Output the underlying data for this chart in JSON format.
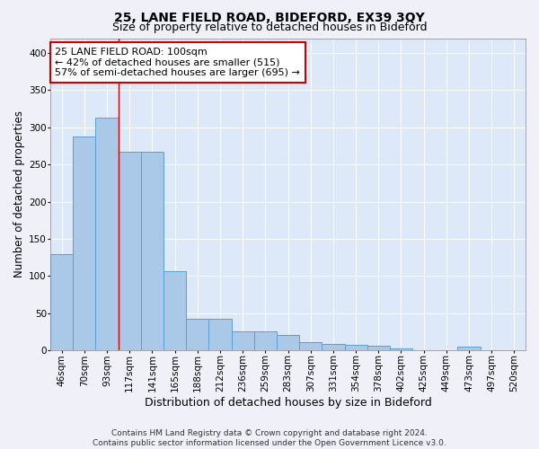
{
  "title": "25, LANE FIELD ROAD, BIDEFORD, EX39 3QY",
  "subtitle": "Size of property relative to detached houses in Bideford",
  "xlabel": "Distribution of detached houses by size in Bideford",
  "ylabel": "Number of detached properties",
  "footer_line1": "Contains HM Land Registry data © Crown copyright and database right 2024.",
  "footer_line2": "Contains public sector information licensed under the Open Government Licence v3.0.",
  "bar_labels": [
    "46sqm",
    "70sqm",
    "93sqm",
    "117sqm",
    "141sqm",
    "165sqm",
    "188sqm",
    "212sqm",
    "236sqm",
    "259sqm",
    "283sqm",
    "307sqm",
    "331sqm",
    "354sqm",
    "378sqm",
    "402sqm",
    "425sqm",
    "449sqm",
    "473sqm",
    "497sqm",
    "520sqm"
  ],
  "bar_values": [
    130,
    288,
    313,
    267,
    267,
    106,
    42,
    42,
    26,
    26,
    21,
    11,
    9,
    7,
    6,
    2,
    0,
    0,
    5,
    0,
    0
  ],
  "bar_color": "#aac8e8",
  "bar_edge_color": "#5a9fd4",
  "bar_edge_width": 0.7,
  "background_color": "#dde8f8",
  "fig_background_color": "#f0f0f8",
  "annotation_line1": "25 LANE FIELD ROAD: 100sqm",
  "annotation_line2": "← 42% of detached houses are smaller (515)",
  "annotation_line3": "57% of semi-detached houses are larger (695) →",
  "annotation_box_color": "#ffffff",
  "annotation_box_edge_color": "#cc0000",
  "redline_x": 2.5,
  "ylim": [
    0,
    420
  ],
  "yticks": [
    0,
    50,
    100,
    150,
    200,
    250,
    300,
    350,
    400
  ],
  "grid_color": "#ffffff",
  "title_fontsize": 10,
  "subtitle_fontsize": 9,
  "xlabel_fontsize": 9,
  "ylabel_fontsize": 8.5,
  "tick_fontsize": 7.5,
  "annotation_fontsize": 8,
  "footer_fontsize": 6.5
}
